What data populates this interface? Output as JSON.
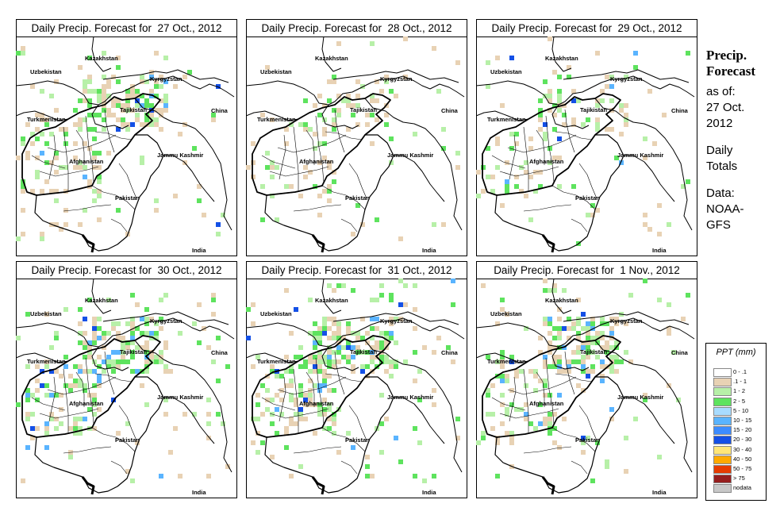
{
  "panels": [
    {
      "title": "Daily Precip. Forecast for  27 Oct., 2012",
      "date": "27 Oct., 2012"
    },
    {
      "title": "Daily Precip. Forecast for  28 Oct., 2012",
      "date": "28 Oct., 2012"
    },
    {
      "title": "Daily Precip. Forecast for  29 Oct., 2012",
      "date": "29 Oct., 2012"
    },
    {
      "title": "Daily Precip. Forecast for  30 Oct., 2012",
      "date": "30 Oct., 2012"
    },
    {
      "title": "Daily Precip. Forecast for  31 Oct., 2012",
      "date": "31 Oct., 2012"
    },
    {
      "title": "Daily Precip. Forecast for  1 Nov., 2012",
      "date": "1 Nov., 2012"
    }
  ],
  "map_labels": {
    "uzbekistan": "Uzbekistan",
    "kazakhstan": "Kazakhstan",
    "kyrgyzstan": "Kyrgyzstan",
    "turkmenistan": "Turkmenistan",
    "tajikistan": "Tajikistan",
    "china": "China",
    "afghanistan": "Afghanistan",
    "jammu_kashmir": "Jammu Kashmir",
    "pakistan": "Pakistan",
    "india": "India"
  },
  "side_panel": {
    "title_line1": "Precip.",
    "title_line2": "Forecast",
    "asof_line1": "as of:",
    "asof_line2": "27 Oct.",
    "asof_line3": "2012",
    "totals_line1": "Daily",
    "totals_line2": "Totals",
    "data_line1": "Data:",
    "data_line2": "NOAA-",
    "data_line3": "GFS"
  },
  "legend": {
    "title": "PPT (mm)",
    "items": [
      {
        "label": "0 - .1",
        "color": "#ffffff"
      },
      {
        "label": ".1 - 1",
        "color": "#e8d2b4"
      },
      {
        "label": "1 - 2",
        "color": "#b7f0a8"
      },
      {
        "label": "2 - 5",
        "color": "#5ee35e"
      },
      {
        "label": "5 - 10",
        "color": "#a8dcff"
      },
      {
        "label": "10 - 15",
        "color": "#5ab4ff"
      },
      {
        "label": "15 - 20",
        "color": "#3c8cff"
      },
      {
        "label": "20 - 30",
        "color": "#1450e6"
      },
      {
        "label": "30 - 40",
        "color": "#ffe678"
      },
      {
        "label": "40 - 50",
        "color": "#ffaa00"
      },
      {
        "label": "50 - 75",
        "color": "#e63c00"
      },
      {
        "label": "> 75",
        "color": "#961e1e"
      },
      {
        "label": "nodata",
        "color": "#c8c8c8"
      }
    ]
  },
  "precip_intensity": [
    {
      "tan": 0.5,
      "lgreen": 0.5,
      "green": 0.5,
      "blue": 0.3
    },
    {
      "tan": 0.25,
      "lgreen": 0.25,
      "green": 0.2,
      "blue": 0.0
    },
    {
      "tan": 0.2,
      "lgreen": 0.2,
      "green": 0.4,
      "blue": 0.3
    },
    {
      "tan": 0.45,
      "lgreen": 0.45,
      "green": 0.6,
      "blue": 0.45
    },
    {
      "tan": 0.7,
      "lgreen": 0.55,
      "green": 0.7,
      "blue": 0.35
    },
    {
      "tan": 0.55,
      "lgreen": 0.45,
      "green": 0.5,
      "blue": 0.3
    }
  ]
}
